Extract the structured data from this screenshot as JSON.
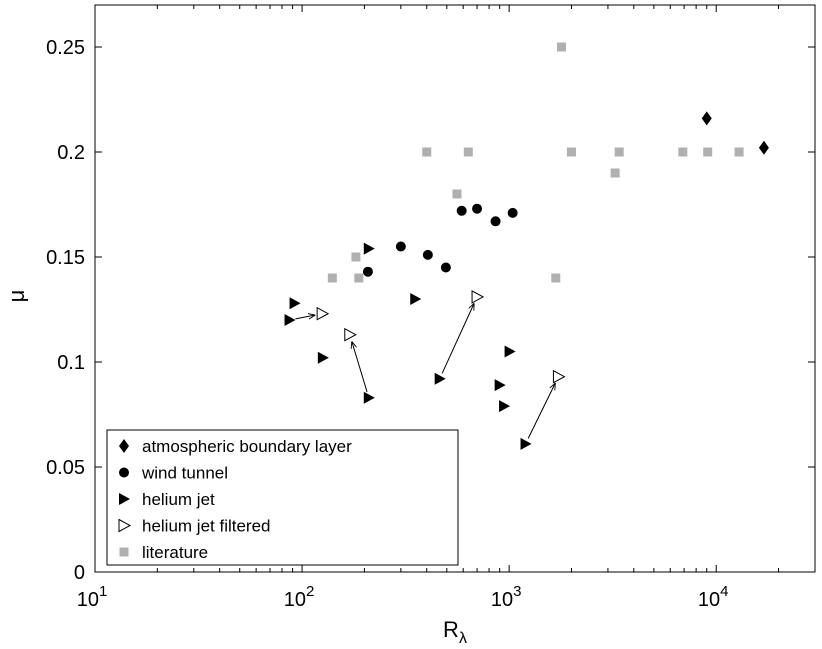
{
  "chart_data": {
    "type": "scatter",
    "xscale": "log",
    "xlim": [
      10,
      30000
    ],
    "ylim": [
      0,
      0.27
    ],
    "grid": false,
    "legend_position": "bottom-left",
    "xlabel": "R",
    "xlabel_sub": "λ",
    "ylabel": "μ",
    "x_ticks": [
      {
        "value": 10,
        "base": "10",
        "exp": "1"
      },
      {
        "value": 100,
        "base": "10",
        "exp": "2"
      },
      {
        "value": 1000,
        "base": "10",
        "exp": "3"
      },
      {
        "value": 10000,
        "base": "10",
        "exp": "4"
      }
    ],
    "y_ticks": [
      {
        "value": 0,
        "label": "0"
      },
      {
        "value": 0.05,
        "label": "0.05"
      },
      {
        "value": 0.1,
        "label": "0.1"
      },
      {
        "value": 0.15,
        "label": "0.15"
      },
      {
        "value": 0.2,
        "label": "0.2"
      },
      {
        "value": 0.25,
        "label": "0.25"
      }
    ],
    "series": [
      {
        "name": "atmospheric boundary layer",
        "marker": "diamond",
        "color": "#000000",
        "points": [
          [
            9000,
            0.216
          ],
          [
            17000,
            0.202
          ]
        ]
      },
      {
        "name": "wind tunnel",
        "marker": "circle",
        "color": "#000000",
        "points": [
          [
            208,
            0.143
          ],
          [
            300,
            0.155
          ],
          [
            405,
            0.151
          ],
          [
            495,
            0.145
          ],
          [
            590,
            0.172
          ],
          [
            700,
            0.173
          ],
          [
            860,
            0.167
          ],
          [
            1040,
            0.171
          ]
        ]
      },
      {
        "name": "helium jet",
        "marker": "triangle-right",
        "color": "#000000",
        "points": [
          [
            87,
            0.12
          ],
          [
            92,
            0.128
          ],
          [
            126,
            0.102
          ],
          [
            210,
            0.154
          ],
          [
            210,
            0.083
          ],
          [
            352,
            0.13
          ],
          [
            462,
            0.092
          ],
          [
            900,
            0.089
          ],
          [
            945,
            0.079
          ],
          [
            1005,
            0.105
          ],
          [
            1200,
            0.061
          ]
        ]
      },
      {
        "name": "helium jet filtered",
        "marker": "triangle-right-open",
        "color": "#000000",
        "points": [
          [
            125,
            0.123
          ],
          [
            170,
            0.113
          ],
          [
            700,
            0.131
          ],
          [
            1730,
            0.093
          ]
        ]
      },
      {
        "name": "literature",
        "marker": "square",
        "color": "#b0b0b0",
        "points": [
          [
            140,
            0.14
          ],
          [
            182,
            0.15
          ],
          [
            188,
            0.14
          ],
          [
            400,
            0.2
          ],
          [
            560,
            0.18
          ],
          [
            635,
            0.2
          ],
          [
            1680,
            0.14
          ],
          [
            1790,
            0.25
          ],
          [
            2000,
            0.2
          ],
          [
            3250,
            0.19
          ],
          [
            3400,
            0.2
          ],
          [
            6900,
            0.2
          ],
          [
            9100,
            0.2
          ],
          [
            12900,
            0.2
          ]
        ]
      }
    ],
    "arrows": [
      {
        "from": [
          87,
          0.12
        ],
        "to": [
          125,
          0.123
        ]
      },
      {
        "from": [
          210,
          0.083
        ],
        "to": [
          170,
          0.113
        ]
      },
      {
        "from": [
          462,
          0.092
        ],
        "to": [
          700,
          0.131
        ]
      },
      {
        "from": [
          1200,
          0.061
        ],
        "to": [
          1730,
          0.093
        ]
      }
    ]
  }
}
